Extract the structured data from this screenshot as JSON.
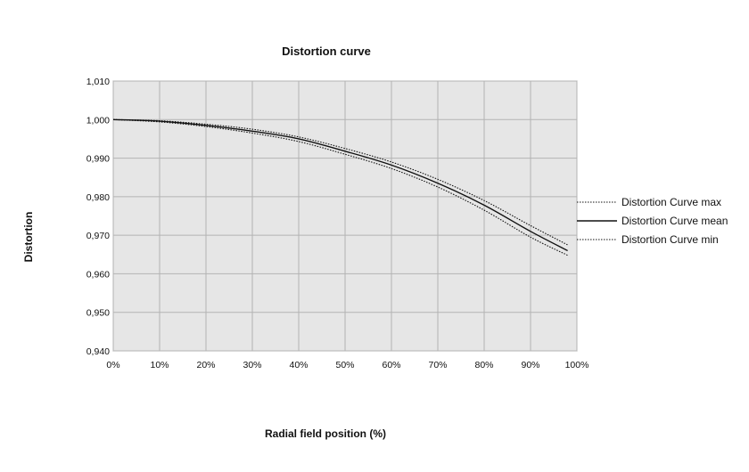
{
  "chart_data": {
    "type": "line",
    "title": "Distortion curve",
    "xlabel": "Radial field position (%)",
    "ylabel": "Distortion",
    "xlim": [
      0,
      100
    ],
    "ylim": [
      0.94,
      1.01
    ],
    "x_ticks": [
      "0%",
      "10%",
      "20%",
      "30%",
      "40%",
      "50%",
      "60%",
      "70%",
      "80%",
      "90%",
      "100%"
    ],
    "y_ticks": [
      "0,940",
      "0,950",
      "0,960",
      "0,970",
      "0,980",
      "0,990",
      "1,000",
      "1,010"
    ],
    "grid": true,
    "legend_position": "right",
    "colors": {
      "plot_background": "#e6e6e6",
      "grid": "#b3b3b3",
      "series": "#111111"
    },
    "x": [
      0,
      10,
      20,
      30,
      40,
      50,
      60,
      70,
      80,
      90,
      98
    ],
    "series": [
      {
        "name": "Distortion Curve max",
        "style": "dotted",
        "values": [
          1.0,
          0.9997,
          0.9988,
          0.9975,
          0.9955,
          0.9925,
          0.989,
          0.9845,
          0.979,
          0.9725,
          0.9675
        ]
      },
      {
        "name": "Distortion Curve mean",
        "style": "solid",
        "values": [
          1.0,
          0.9996,
          0.9985,
          0.997,
          0.995,
          0.9918,
          0.9882,
          0.9835,
          0.9778,
          0.971,
          0.966
        ]
      },
      {
        "name": "Distortion Curve min",
        "style": "dotted",
        "values": [
          1.0,
          0.9994,
          0.9982,
          0.9965,
          0.9943,
          0.991,
          0.9873,
          0.9825,
          0.9765,
          0.9695,
          0.9648
        ]
      }
    ]
  }
}
